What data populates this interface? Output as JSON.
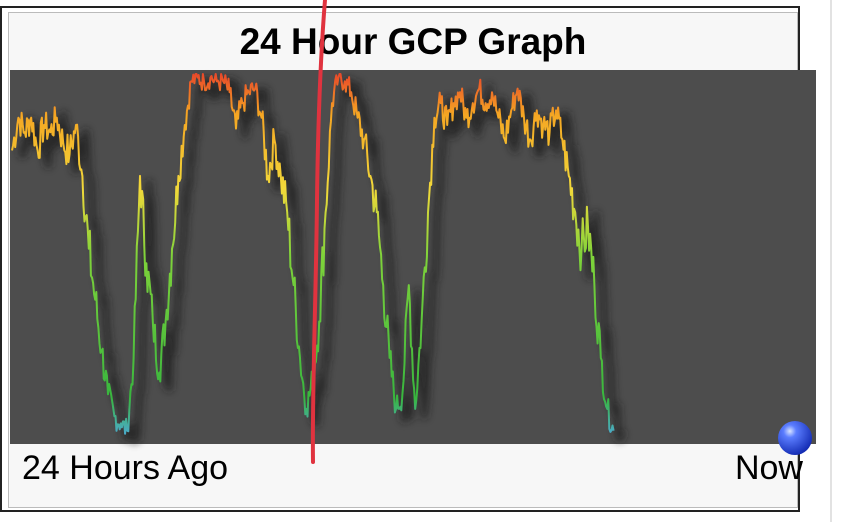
{
  "chart_data": {
    "type": "line",
    "title": "24 Hour GCP Graph",
    "x_start_label": "24 Hours Ago",
    "x_end_label": "Now",
    "xlim": [
      -24,
      0
    ],
    "ylim": [
      0,
      1
    ],
    "grid": false,
    "background": "#4d4d4d",
    "colors": {
      "high": "#e8402a",
      "mid_high": "#f5a623",
      "mid": "#f2d93a",
      "mid_low": "#7fd33a",
      "low": "#38b63e",
      "floor": "#4fa8e8",
      "annotation": "#e0333f",
      "now_marker": "#2a52e0"
    },
    "series": [
      {
        "points": [
          [
            -24.0,
            0.79
          ],
          [
            -23.8,
            0.88
          ],
          [
            -23.6,
            0.84
          ],
          [
            -23.4,
            0.88
          ],
          [
            -23.2,
            0.79
          ],
          [
            -23.0,
            0.86
          ],
          [
            -22.8,
            0.84
          ],
          [
            -22.6,
            0.88
          ],
          [
            -22.4,
            0.81
          ],
          [
            -22.2,
            0.78
          ],
          [
            -22.0,
            0.86
          ],
          [
            -21.8,
            0.72
          ],
          [
            -21.6,
            0.52
          ],
          [
            -21.4,
            0.38
          ],
          [
            -21.2,
            0.24
          ],
          [
            -21.0,
            0.12
          ],
          [
            -20.8,
            0.06
          ],
          [
            -20.6,
            0.04
          ],
          [
            -20.4,
            0.02
          ],
          [
            -20.2,
            0.22
          ],
          [
            -20.0,
            0.72
          ],
          [
            -19.8,
            0.48
          ],
          [
            -19.6,
            0.32
          ],
          [
            -19.4,
            0.18
          ],
          [
            -19.2,
            0.32
          ],
          [
            -19.0,
            0.52
          ],
          [
            -18.8,
            0.72
          ],
          [
            -18.6,
            0.86
          ],
          [
            -18.4,
            0.98
          ],
          [
            -18.2,
            0.99
          ],
          [
            -18.0,
            0.98
          ],
          [
            -17.8,
            0.99
          ],
          [
            -17.6,
            0.98
          ],
          [
            -17.4,
            0.98
          ],
          [
            -17.2,
            0.95
          ],
          [
            -17.0,
            0.85
          ],
          [
            -16.8,
            0.92
          ],
          [
            -16.6,
            0.95
          ],
          [
            -16.4,
            0.96
          ],
          [
            -16.2,
            0.88
          ],
          [
            -16.0,
            0.72
          ],
          [
            -15.8,
            0.82
          ],
          [
            -15.6,
            0.72
          ],
          [
            -15.4,
            0.62
          ],
          [
            -15.2,
            0.42
          ],
          [
            -15.0,
            0.22
          ],
          [
            -14.8,
            0.08
          ],
          [
            -14.6,
            0.16
          ],
          [
            -14.4,
            0.32
          ],
          [
            -14.2,
            0.62
          ],
          [
            -14.0,
            0.92
          ],
          [
            -13.8,
            0.99
          ],
          [
            -13.6,
            0.98
          ],
          [
            -13.4,
            0.95
          ],
          [
            -13.2,
            0.88
          ],
          [
            -13.0,
            0.82
          ],
          [
            -12.8,
            0.72
          ],
          [
            -12.6,
            0.62
          ],
          [
            -12.4,
            0.42
          ],
          [
            -12.2,
            0.22
          ],
          [
            -12.0,
            0.08
          ],
          [
            -11.8,
            0.12
          ],
          [
            -11.6,
            0.42
          ],
          [
            -11.4,
            0.08
          ],
          [
            -11.2,
            0.32
          ],
          [
            -11.0,
            0.62
          ],
          [
            -10.8,
            0.88
          ],
          [
            -10.6,
            0.92
          ],
          [
            -10.4,
            0.86
          ],
          [
            -10.2,
            0.92
          ],
          [
            -10.0,
            0.95
          ],
          [
            -9.8,
            0.88
          ],
          [
            -9.6,
            0.92
          ],
          [
            -9.4,
            0.96
          ],
          [
            -9.2,
            0.92
          ],
          [
            -9.0,
            0.95
          ],
          [
            -8.8,
            0.88
          ],
          [
            -8.6,
            0.82
          ],
          [
            -8.4,
            0.9
          ],
          [
            -8.2,
            0.96
          ],
          [
            -8.0,
            0.88
          ],
          [
            -7.8,
            0.82
          ],
          [
            -7.6,
            0.9
          ],
          [
            -7.4,
            0.86
          ],
          [
            -7.2,
            0.84
          ],
          [
            -7.0,
            0.9
          ],
          [
            -6.8,
            0.82
          ],
          [
            -6.6,
            0.72
          ],
          [
            -6.4,
            0.62
          ],
          [
            -6.2,
            0.52
          ],
          [
            -6.0,
            0.58
          ],
          [
            -5.8,
            0.42
          ],
          [
            -5.6,
            0.22
          ],
          [
            -5.4,
            0.08
          ],
          [
            -5.2,
            0.02
          ]
        ]
      }
    ]
  }
}
